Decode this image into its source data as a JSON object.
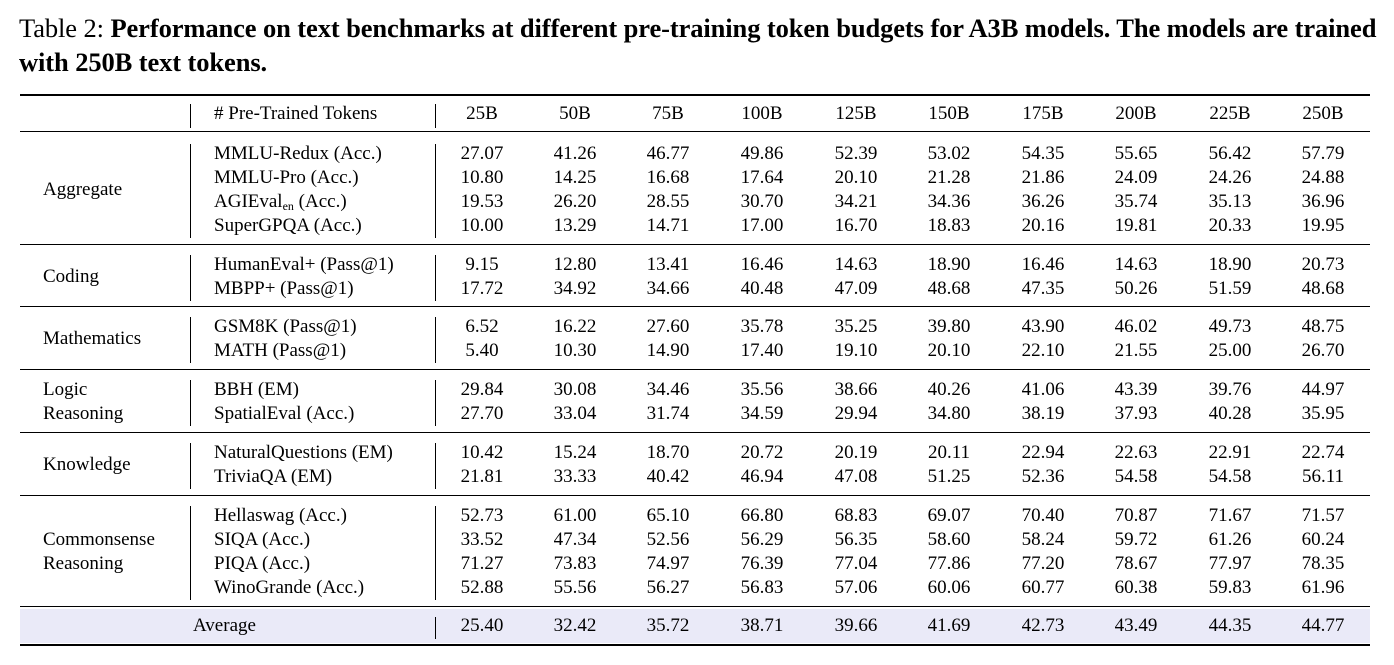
{
  "caption": {
    "label": "Table 2: ",
    "text": "Performance on text benchmarks at different pre-training token budgets for A3B models. The models are trained with 250B text tokens."
  },
  "table": {
    "header_label": "# Pre-Trained Tokens",
    "columns": [
      "25B",
      "50B",
      "75B",
      "100B",
      "125B",
      "150B",
      "175B",
      "200B",
      "225B",
      "250B"
    ],
    "groups": [
      {
        "category": [
          "Aggregate"
        ],
        "rows": [
          {
            "name": "MMLU-Redux (Acc.)",
            "values": [
              "27.07",
              "41.26",
              "46.77",
              "49.86",
              "52.39",
              "53.02",
              "54.35",
              "55.65",
              "56.42",
              "57.79"
            ]
          },
          {
            "name": "MMLU-Pro (Acc.)",
            "values": [
              "10.80",
              "14.25",
              "16.68",
              "17.64",
              "20.10",
              "21.28",
              "21.86",
              "24.09",
              "24.26",
              "24.88"
            ]
          },
          {
            "name": "AGIEval",
            "sub": "en",
            "suffix": " (Acc.)",
            "values": [
              "19.53",
              "26.20",
              "28.55",
              "30.70",
              "34.21",
              "34.36",
              "36.26",
              "35.74",
              "35.13",
              "36.96"
            ]
          },
          {
            "name": "SuperGPQA (Acc.)",
            "values": [
              "10.00",
              "13.29",
              "14.71",
              "17.00",
              "16.70",
              "18.83",
              "20.16",
              "19.81",
              "20.33",
              "19.95"
            ]
          }
        ]
      },
      {
        "category": [
          "Coding"
        ],
        "rows": [
          {
            "name": "HumanEval+ (Pass@1)",
            "values": [
              "9.15",
              "12.80",
              "13.41",
              "16.46",
              "14.63",
              "18.90",
              "16.46",
              "14.63",
              "18.90",
              "20.73"
            ]
          },
          {
            "name": "MBPP+ (Pass@1)",
            "values": [
              "17.72",
              "34.92",
              "34.66",
              "40.48",
              "47.09",
              "48.68",
              "47.35",
              "50.26",
              "51.59",
              "48.68"
            ]
          }
        ]
      },
      {
        "category": [
          "Mathematics"
        ],
        "rows": [
          {
            "name": "GSM8K (Pass@1)",
            "values": [
              "6.52",
              "16.22",
              "27.60",
              "35.78",
              "35.25",
              "39.80",
              "43.90",
              "46.02",
              "49.73",
              "48.75"
            ]
          },
          {
            "name": "MATH (Pass@1)",
            "values": [
              "5.40",
              "10.30",
              "14.90",
              "17.40",
              "19.10",
              "20.10",
              "22.10",
              "21.55",
              "25.00",
              "26.70"
            ]
          }
        ]
      },
      {
        "category": [
          "Logic",
          "Reasoning"
        ],
        "rows": [
          {
            "name": "BBH (EM)",
            "values": [
              "29.84",
              "30.08",
              "34.46",
              "35.56",
              "38.66",
              "40.26",
              "41.06",
              "43.39",
              "39.76",
              "44.97"
            ]
          },
          {
            "name": "SpatialEval (Acc.)",
            "values": [
              "27.70",
              "33.04",
              "31.74",
              "34.59",
              "29.94",
              "34.80",
              "38.19",
              "37.93",
              "40.28",
              "35.95"
            ]
          }
        ]
      },
      {
        "category": [
          "Knowledge"
        ],
        "rows": [
          {
            "name": "NaturalQuestions (EM)",
            "values": [
              "10.42",
              "15.24",
              "18.70",
              "20.72",
              "20.19",
              "20.11",
              "22.94",
              "22.63",
              "22.91",
              "22.74"
            ]
          },
          {
            "name": "TriviaQA (EM)",
            "values": [
              "21.81",
              "33.33",
              "40.42",
              "46.94",
              "47.08",
              "51.25",
              "52.36",
              "54.58",
              "54.58",
              "56.11"
            ]
          }
        ]
      },
      {
        "category": [
          "Commonsense",
          "Reasoning"
        ],
        "rows": [
          {
            "name": "Hellaswag (Acc.)",
            "values": [
              "52.73",
              "61.00",
              "65.10",
              "66.80",
              "68.83",
              "69.07",
              "70.40",
              "70.87",
              "71.67",
              "71.57"
            ]
          },
          {
            "name": "SIQA (Acc.)",
            "values": [
              "33.52",
              "47.34",
              "52.56",
              "56.29",
              "56.35",
              "58.60",
              "58.24",
              "59.72",
              "61.26",
              "60.24"
            ]
          },
          {
            "name": "PIQA (Acc.)",
            "values": [
              "71.27",
              "73.83",
              "74.97",
              "76.39",
              "77.04",
              "77.86",
              "77.20",
              "78.67",
              "77.97",
              "78.35"
            ]
          },
          {
            "name": "WinoGrande (Acc.)",
            "values": [
              "52.88",
              "55.56",
              "56.27",
              "56.83",
              "57.06",
              "60.06",
              "60.77",
              "60.38",
              "59.83",
              "61.96"
            ]
          }
        ]
      }
    ],
    "average": {
      "label": "Average",
      "values": [
        "25.40",
        "32.42",
        "35.72",
        "38.71",
        "39.66",
        "41.69",
        "42.73",
        "43.49",
        "44.35",
        "44.77"
      ]
    },
    "highlight_color": "#eaeaf8"
  }
}
